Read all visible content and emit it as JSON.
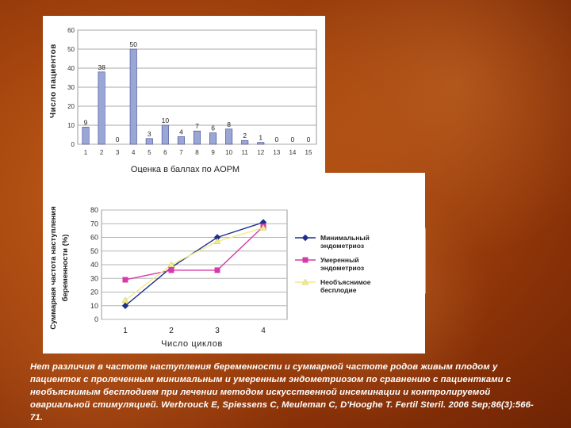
{
  "chart_data": [
    {
      "type": "bar",
      "title": "",
      "xlabel": "Оценка в баллах по AОРМ",
      "ylabel": "Число пациентов",
      "categories": [
        "1",
        "2",
        "3",
        "4",
        "5",
        "6",
        "7",
        "8",
        "9",
        "10",
        "11",
        "12",
        "13",
        "14",
        "15"
      ],
      "values": [
        9,
        38,
        0,
        50,
        3,
        10,
        4,
        7,
        6,
        8,
        2,
        1,
        0,
        0,
        0
      ],
      "value_labels": [
        "9",
        "38",
        "0",
        "50",
        "3",
        "10",
        "4",
        "7",
        "6",
        "8",
        "2",
        "1",
        "0",
        "0",
        "0"
      ],
      "ylim": [
        0,
        60
      ],
      "yticks": [
        0,
        10,
        20,
        30,
        40,
        50,
        60
      ],
      "grid": true,
      "bar_color": "#9aa6d6"
    },
    {
      "type": "line",
      "title": "",
      "xlabel": "Число циклов",
      "ylabel": "Суммарная частота наступления беременности (%)",
      "categories": [
        "1",
        "2",
        "3",
        "4"
      ],
      "ylim": [
        0,
        80
      ],
      "yticks": [
        0,
        10,
        20,
        30,
        40,
        50,
        60,
        70,
        80
      ],
      "grid": true,
      "legend_position": "right",
      "series": [
        {
          "name": "Минимальный эндометриоз",
          "values": [
            10,
            38,
            60,
            71
          ],
          "color": "#1f2f8a",
          "marker": "diamond"
        },
        {
          "name": "Умеренный эндометриоз",
          "values": [
            29,
            36,
            36,
            68
          ],
          "color": "#d63aa8",
          "marker": "square"
        },
        {
          "name": "Необъяснимое бесплодие",
          "values": [
            14,
            40,
            57,
            67
          ],
          "color": "#f0ec8c",
          "marker": "triangle"
        }
      ]
    }
  ],
  "caption": "Нет различия в частоте наступления беременности и суммарной частоте родов живым плодом у пациенток с пролеченным минимальным и умеренным эндометриозом по сравнению с пациентками с необъяснимым бесплодием при лечении методом искусственной инсеминации и контролируемой овариальной стимуляцией. Werbrouck E, Spiessens C, Meuleman C, D'Hooghe T. Fertil Steril. 2006 Sep;86(3):566-71."
}
